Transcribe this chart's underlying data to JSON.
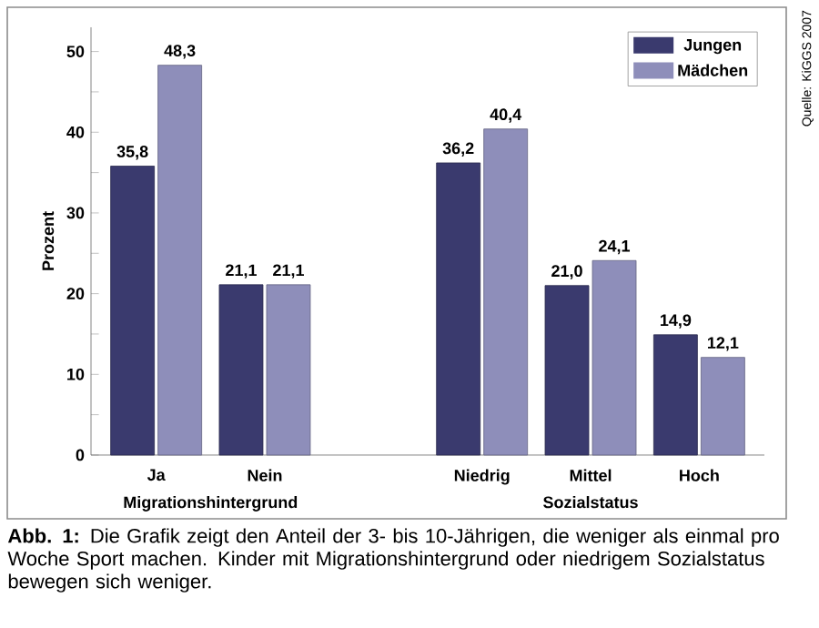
{
  "chart_data": {
    "type": "bar",
    "ylabel": "Prozent",
    "categories": [
      "Ja",
      "Nein",
      null,
      "Niedrig",
      "Mittel",
      "Hoch"
    ],
    "series": [
      {
        "name": "Jungen",
        "color": "#3a3a6e",
        "values": [
          35.8,
          21.1,
          null,
          36.2,
          21.0,
          14.9
        ],
        "value_labels": [
          "35,8",
          "21,1",
          null,
          "36,2",
          "21,0",
          "14,9"
        ]
      },
      {
        "name": "Mädchen",
        "color": "#8e8eba",
        "values": [
          48.3,
          21.1,
          null,
          40.4,
          24.1,
          12.1
        ],
        "value_labels": [
          "48,3",
          "21,1",
          null,
          "40,4",
          "24,1",
          "12,1"
        ]
      }
    ],
    "ylim": [
      0,
      53
    ],
    "yticks": [
      0,
      {
        "value": 5,
        "label": null
      },
      10,
      {
        "value": 15,
        "label": null
      },
      20,
      {
        "value": 25,
        "label": null
      },
      30,
      {
        "value": 35,
        "label": null
      },
      40,
      {
        "value": 45,
        "label": null
      },
      50
    ],
    "grid": false,
    "legend": "top right",
    "annotations": [
      "Migrationshintergrund",
      "Sozialstatus",
      "Quelle: KiGGS 2007",
      "**Abb. 1:** Die Grafik zeigt den Anteil der 3- bis 10-Jährigen, die weniger als einmal pro Woche Sport machen. Kinder mit Migrationshintergrund oder niedrigem Sozialstatus bewegen sich weniger."
    ]
  }
}
